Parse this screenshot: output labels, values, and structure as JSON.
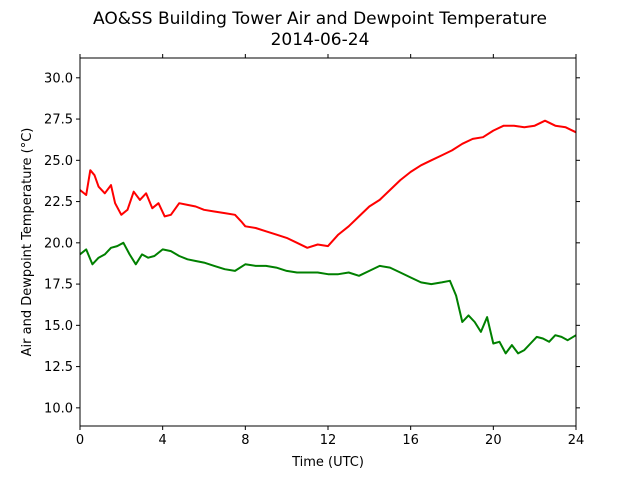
{
  "chart_data": {
    "type": "line",
    "title": "AO&SS Building Tower Air and Dewpoint Temperature",
    "subtitle": "2014-06-24",
    "xlabel": "Time (UTC)",
    "ylabel": "Air and Dewpoint Temperature (°C)",
    "xlim": [
      0,
      24
    ],
    "ylim": [
      8.9,
      31.2
    ],
    "xticks": [
      0,
      4,
      8,
      12,
      16,
      20,
      24
    ],
    "xtick_labels": [
      "0",
      "4",
      "8",
      "12",
      "16",
      "20",
      "24"
    ],
    "yticks": [
      10.0,
      12.5,
      15.0,
      17.5,
      20.0,
      22.5,
      25.0,
      27.5,
      30.0
    ],
    "ytick_labels": [
      "10.0",
      "12.5",
      "15.0",
      "17.5",
      "20.0",
      "22.5",
      "25.0",
      "27.5",
      "30.0"
    ],
    "grid": false,
    "series": [
      {
        "color": "#ff0000",
        "x": [
          0,
          0.3,
          0.5,
          0.7,
          0.9,
          1.2,
          1.5,
          1.7,
          2.0,
          2.3,
          2.6,
          2.9,
          3.2,
          3.5,
          3.8,
          4.1,
          4.4,
          4.8,
          5.2,
          5.6,
          6.0,
          6.5,
          7.0,
          7.5,
          7.8,
          8.0,
          8.5,
          9.0,
          9.5,
          10.0,
          10.5,
          11.0,
          11.5,
          12.0,
          12.5,
          13.0,
          13.5,
          14.0,
          14.5,
          15.0,
          15.5,
          16.0,
          16.5,
          17.0,
          17.5,
          18.0,
          18.5,
          19.0,
          19.5,
          20.0,
          20.5,
          21.0,
          21.5,
          22.0,
          22.5,
          23.0,
          23.5,
          24.0
        ],
        "y": [
          23.2,
          22.9,
          24.4,
          24.1,
          23.4,
          23.0,
          23.5,
          22.4,
          21.7,
          22.0,
          23.1,
          22.6,
          23.0,
          22.1,
          22.4,
          21.6,
          21.7,
          22.4,
          22.3,
          22.2,
          22.0,
          21.9,
          21.8,
          21.7,
          21.3,
          21.0,
          20.9,
          20.7,
          20.5,
          20.3,
          20.0,
          19.7,
          19.9,
          19.8,
          20.5,
          21.0,
          21.6,
          22.2,
          22.6,
          23.2,
          23.8,
          24.3,
          24.7,
          25.0,
          25.3,
          25.6,
          26.0,
          26.3,
          26.4,
          26.8,
          27.1,
          27.1,
          27.0,
          27.1,
          27.4,
          27.1,
          27.0,
          26.7
        ]
      },
      {
        "color": "#008000",
        "x": [
          0,
          0.3,
          0.6,
          0.9,
          1.2,
          1.5,
          1.8,
          2.1,
          2.4,
          2.7,
          3.0,
          3.3,
          3.6,
          4.0,
          4.4,
          4.8,
          5.2,
          5.6,
          6.0,
          6.5,
          7.0,
          7.5,
          8.0,
          8.5,
          9.0,
          9.5,
          10.0,
          10.5,
          11.0,
          11.5,
          12.0,
          12.5,
          13.0,
          13.5,
          14.0,
          14.5,
          15.0,
          15.5,
          16.0,
          16.5,
          17.0,
          17.5,
          17.9,
          18.2,
          18.5,
          18.8,
          19.1,
          19.4,
          19.7,
          20.0,
          20.3,
          20.6,
          20.9,
          21.2,
          21.5,
          21.8,
          22.1,
          22.4,
          22.7,
          23.0,
          23.3,
          23.6,
          24.0
        ],
        "y": [
          19.3,
          19.6,
          18.7,
          19.1,
          19.3,
          19.7,
          19.8,
          20.0,
          19.3,
          18.7,
          19.3,
          19.1,
          19.2,
          19.6,
          19.5,
          19.2,
          19.0,
          18.9,
          18.8,
          18.6,
          18.4,
          18.3,
          18.7,
          18.6,
          18.6,
          18.5,
          18.3,
          18.2,
          18.2,
          18.2,
          18.1,
          18.1,
          18.2,
          18.0,
          18.3,
          18.6,
          18.5,
          18.2,
          17.9,
          17.6,
          17.5,
          17.6,
          17.7,
          16.8,
          15.2,
          15.6,
          15.2,
          14.6,
          15.5,
          13.9,
          14.0,
          13.3,
          13.8,
          13.3,
          13.5,
          13.9,
          14.3,
          14.2,
          14.0,
          14.4,
          14.3,
          14.1,
          14.4
        ]
      }
    ]
  }
}
